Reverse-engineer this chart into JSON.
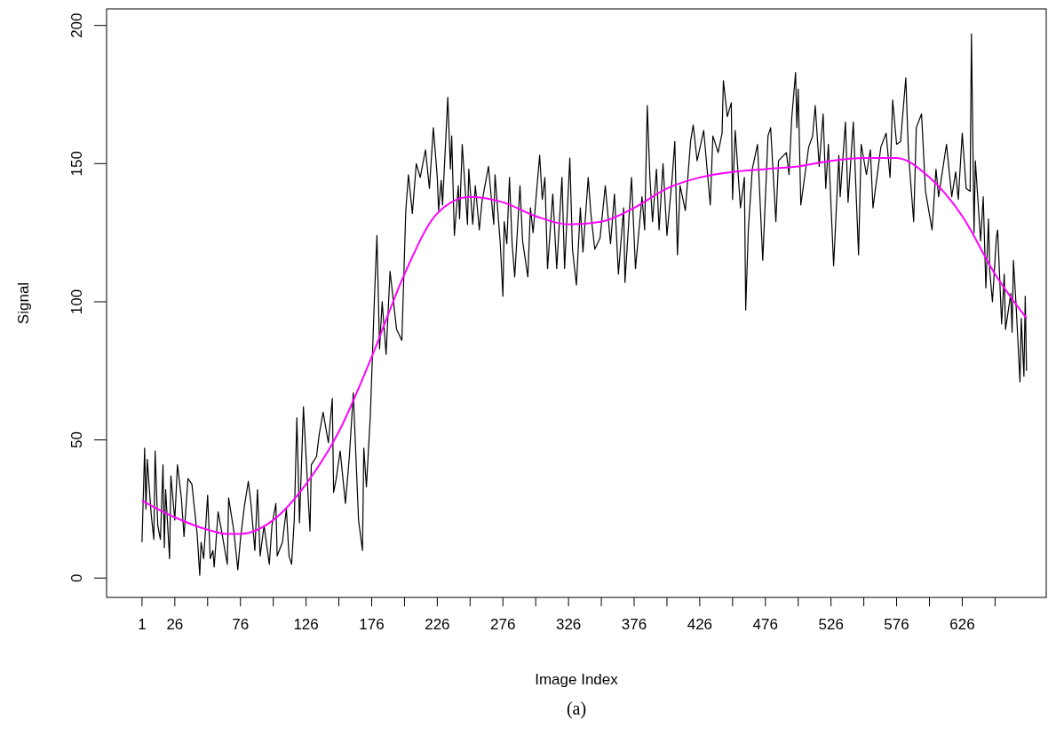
{
  "chart_data": {
    "type": "line",
    "xlabel": "Image Index",
    "ylabel": "Signal",
    "annotations": [
      "(a)"
    ],
    "xlim": [
      -26,
      690
    ],
    "ylim": [
      -7,
      206
    ],
    "xticks": [
      1,
      26,
      {
        "value": 51,
        "label": null
      },
      76,
      {
        "value": 101,
        "label": null
      },
      126,
      {
        "value": 151,
        "label": null
      },
      176,
      {
        "value": 201,
        "label": null
      },
      226,
      {
        "value": 251,
        "label": null
      },
      276,
      {
        "value": 301,
        "label": null
      },
      326,
      {
        "value": 351,
        "label": null
      },
      376,
      {
        "value": 401,
        "label": null
      },
      426,
      {
        "value": 451,
        "label": null
      },
      476,
      {
        "value": 501,
        "label": null
      },
      526,
      {
        "value": 551,
        "label": null
      },
      576,
      {
        "value": 601,
        "label": null
      },
      626,
      {
        "value": 651,
        "label": null
      }
    ],
    "yticks": [
      0,
      50,
      100,
      150,
      200
    ],
    "grid": false,
    "marker": "none",
    "line_style": "solid",
    "series": [
      {
        "color": "#000000",
        "x": [
          1,
          3,
          4,
          5,
          8,
          10,
          11,
          13,
          15,
          17,
          18,
          19,
          22,
          23,
          26,
          28,
          31,
          33,
          36,
          39,
          43,
          45,
          46,
          48,
          51,
          53,
          55,
          56,
          59,
          62,
          66,
          67,
          71,
          74,
          76,
          79,
          82,
          84,
          87,
          89,
          91,
          94,
          98,
          100,
          103,
          104,
          108,
          111,
          113,
          115,
          117,
          119,
          121,
          124,
          126,
          129,
          130,
          134,
          136,
          139,
          143,
          146,
          147,
          149,
          152,
          156,
          159,
          162,
          166,
          169,
          170,
          172,
          175,
          178,
          180,
          182,
          184,
          187,
          190,
          195,
          199,
          202,
          204,
          207,
          210,
          213,
          217,
          220,
          223,
          226,
          227,
          229,
          230,
          234,
          236,
          237,
          239,
          242,
          243,
          245,
          249,
          250,
          253,
          255,
          258,
          260,
          265,
          269,
          270,
          274,
          276,
          277,
          279,
          281,
          283,
          285,
          289,
          291,
          295,
          297,
          299,
          304,
          306,
          308,
          310,
          314,
          317,
          321,
          323,
          327,
          329,
          332,
          335,
          337,
          341,
          343,
          346,
          350,
          354,
          358,
          361,
          364,
          368,
          369,
          374,
          377,
          382,
          384,
          386,
          388,
          390,
          393,
          395,
          398,
          401,
          405,
          407,
          409,
          411,
          415,
          419,
          421,
          424,
          429,
          434,
          436,
          440,
          443,
          444,
          447,
          450,
          451,
          453,
          457,
          460,
          461,
          463,
          466,
          470,
          474,
          478,
          480,
          484,
          486,
          492,
          494,
          496,
          499,
          500,
          501,
          503,
          509,
          512,
          514,
          517,
          520,
          522,
          524,
          528,
          532,
          533,
          537,
          539,
          543,
          547,
          549,
          553,
          556,
          558,
          564,
          568,
          571,
          573,
          576,
          579,
          583,
          585,
          589,
          591,
          595,
          598,
          603,
          606,
          608,
          614,
          618,
          621,
          623,
          626,
          629,
          632,
          633,
          635,
          636,
          640,
          642,
          644,
          646,
          647,
          649,
          652,
          653,
          656,
          658,
          659,
          663,
          664,
          665,
          667,
          670,
          671,
          673,
          674,
          675
        ],
        "values": [
          13,
          47,
          25,
          43,
          23,
          14,
          46,
          19,
          14,
          41,
          11,
          32,
          7,
          37,
          21,
          41,
          29,
          15,
          36,
          34,
          16,
          1,
          13,
          7,
          30,
          7,
          10,
          4,
          24,
          16,
          5,
          29,
          17,
          3,
          14,
          26,
          35,
          27,
          10,
          32,
          8,
          19,
          5,
          19,
          27,
          8,
          13,
          25,
          8,
          5,
          21,
          58,
          20,
          62,
          44,
          17,
          41,
          44,
          52,
          60,
          49,
          65,
          31,
          36,
          46,
          27,
          44,
          67,
          21,
          10,
          47,
          33,
          59,
          100,
          124,
          83,
          100,
          81,
          111,
          90,
          86,
          133,
          146,
          132,
          150,
          145,
          155,
          141,
          163,
          145,
          133,
          144,
          135,
          174,
          148,
          160,
          124,
          142,
          130,
          157,
          128,
          148,
          128,
          142,
          126,
          136,
          149,
          128,
          146,
          121,
          102,
          129,
          121,
          145,
          121,
          109,
          142,
          122,
          109,
          134,
          125,
          153,
          137,
          145,
          112,
          139,
          112,
          145,
          112,
          152,
          119,
          106,
          134,
          118,
          145,
          132,
          119,
          123,
          142,
          121,
          139,
          110,
          134,
          107,
          145,
          112,
          138,
          126,
          171,
          145,
          129,
          148,
          126,
          150,
          124,
          145,
          158,
          117,
          142,
          133,
          158,
          164,
          151,
          162,
          135,
          160,
          154,
          161,
          180,
          167,
          172,
          137,
          162,
          134,
          145,
          97,
          126,
          148,
          157,
          115,
          160,
          163,
          129,
          151,
          154,
          146,
          166,
          183,
          163,
          177,
          135,
          156,
          160,
          171,
          149,
          168,
          141,
          157,
          113,
          153,
          138,
          165,
          136,
          165,
          117,
          157,
          146,
          155,
          134,
          156,
          161,
          145,
          173,
          157,
          158,
          181,
          154,
          129,
          163,
          168,
          140,
          126,
          148,
          138,
          157,
          138,
          147,
          137,
          161,
          141,
          140,
          197,
          125,
          151,
          122,
          138,
          105,
          130,
          111,
          100,
          123,
          126,
          92,
          110,
          90,
          103,
          89,
          115,
          99,
          71,
          94,
          73,
          102,
          75
        ]
      },
      {
        "color": "#ff00ff",
        "x": [
          1,
          26,
          51,
          66,
          76,
          101,
          126,
          151,
          176,
          201,
          226,
          251,
          276,
          301,
          326,
          351,
          376,
          401,
          426,
          451,
          476,
          501,
          526,
          551,
          576,
          601,
          626,
          651,
          675
        ],
        "values": [
          28,
          22,
          17.5,
          16,
          16,
          21,
          34,
          53,
          80,
          110,
          132,
          138,
          136,
          131,
          128,
          129,
          134,
          141,
          145,
          147,
          148,
          149,
          151,
          152,
          152,
          145,
          131,
          110,
          94
        ]
      }
    ]
  }
}
